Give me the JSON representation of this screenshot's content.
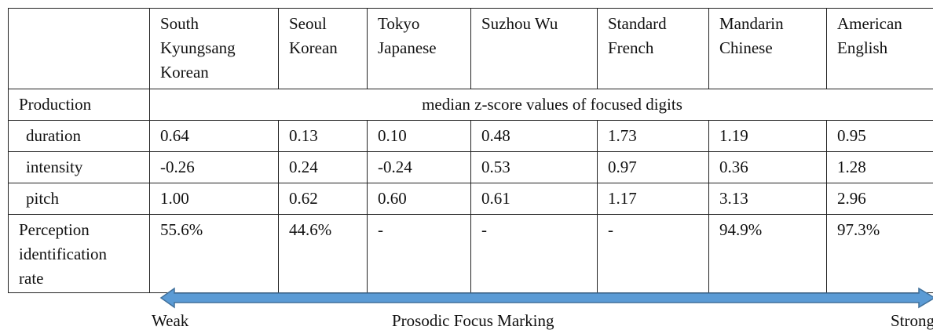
{
  "table": {
    "columns": [
      [
        "South",
        "Kyungsang",
        "Korean"
      ],
      [
        "Seoul",
        "Korean"
      ],
      [
        "Tokyo",
        "Japanese"
      ],
      [
        "Suzhou Wu"
      ],
      [
        "Standard",
        "French"
      ],
      [
        "Mandarin",
        "Chinese"
      ],
      [
        "American",
        "English"
      ]
    ],
    "section": {
      "label": "Production",
      "note": "median z-score values of focused digits"
    },
    "rows": [
      [
        "duration",
        "0.64",
        "0.13",
        "0.10",
        "0.48",
        "1.73",
        "1.19",
        "0.95"
      ],
      [
        "intensity",
        "-0.26",
        "0.24",
        "-0.24",
        "0.53",
        "0.97",
        "0.36",
        "1.28"
      ],
      [
        "pitch",
        "1.00",
        "0.62",
        "0.60",
        "0.61",
        "1.17",
        "3.13",
        "2.96"
      ]
    ],
    "perception": {
      "label": [
        "Perception",
        "identification",
        "rate"
      ],
      "values": [
        "55.6%",
        "44.6%",
        "-",
        "-",
        "-",
        "94.9%",
        "97.3%"
      ]
    }
  },
  "scale": {
    "left": "Weak",
    "center": "Prosodic Focus Marking",
    "right": "Strong"
  }
}
